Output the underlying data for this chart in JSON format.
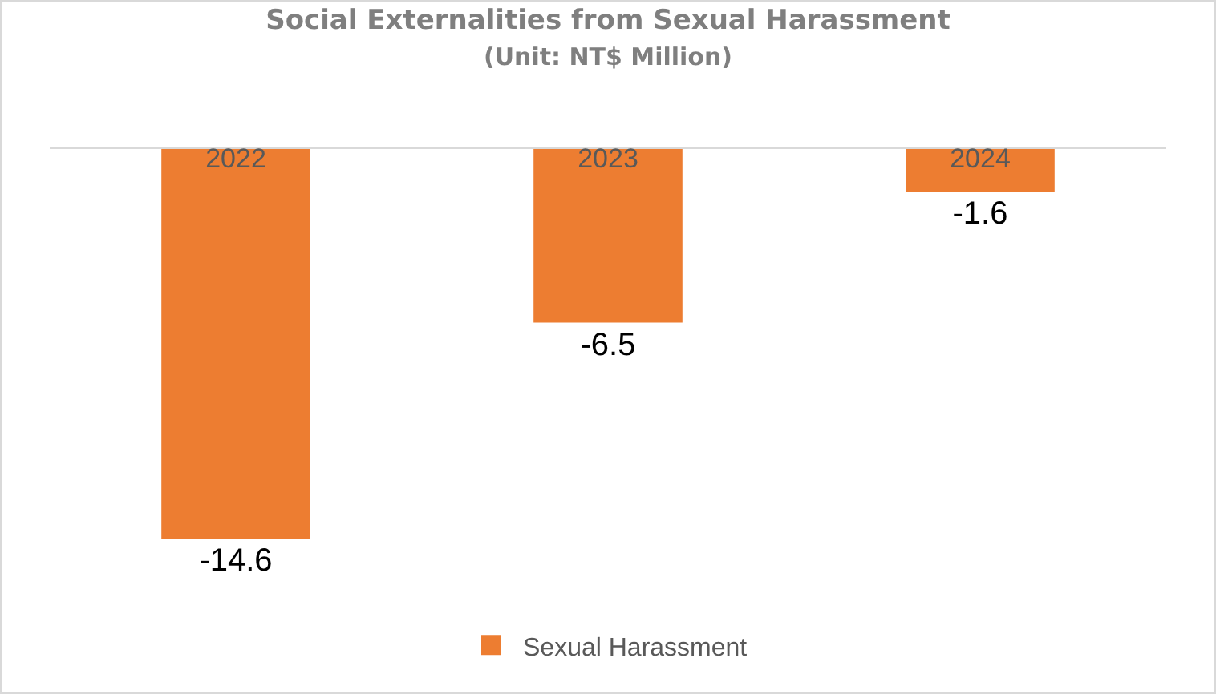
{
  "chart_data": {
    "type": "bar",
    "title": "Social Externalities from Sexual Harassment",
    "subtitle": "(Unit: NT$ Million)",
    "categories": [
      "2022",
      "2023",
      "2024"
    ],
    "series": [
      {
        "name": "Sexual Harassment",
        "color": "#ed7d31",
        "values": [
          -14.6,
          -6.5,
          -1.6
        ]
      }
    ],
    "data_labels": true,
    "grid": false,
    "legend": "bottom"
  }
}
